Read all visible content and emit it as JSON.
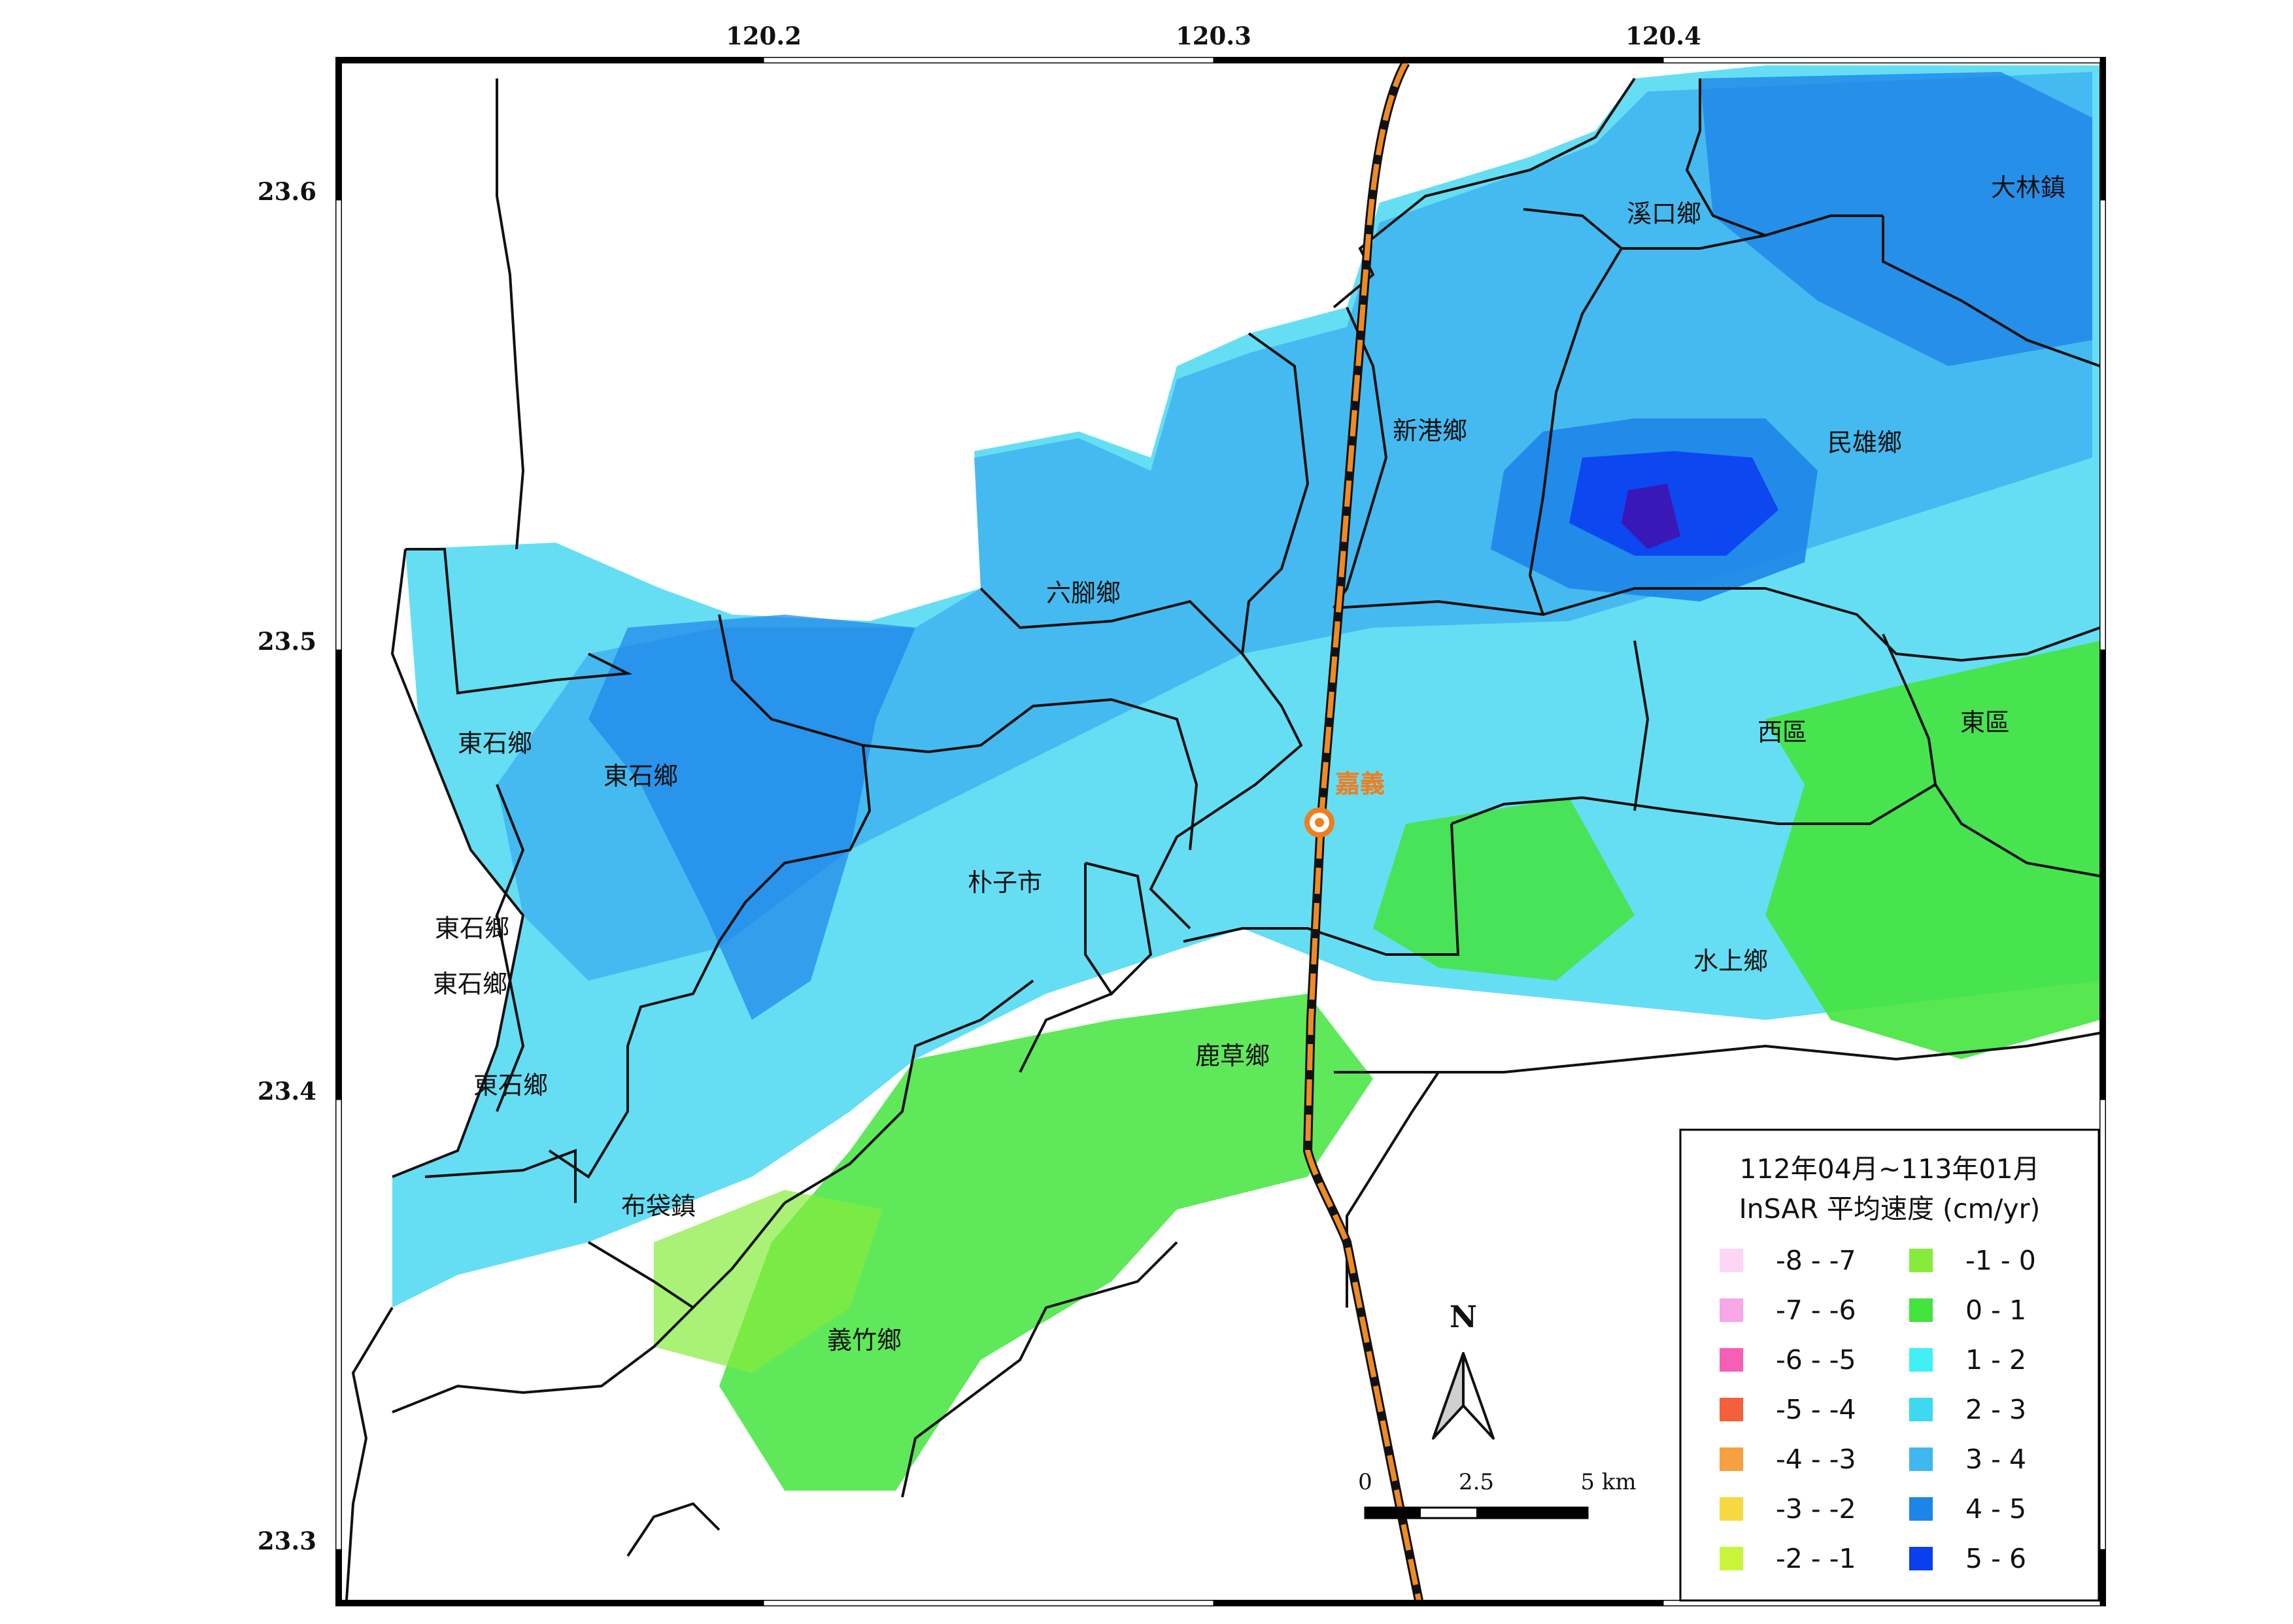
{
  "map": {
    "lon_ticks": [
      "120.2",
      "120.3",
      "120.4"
    ],
    "lat_ticks": [
      "23.6",
      "23.5",
      "23.4",
      "23.3"
    ]
  },
  "towns": [
    {
      "name": "溪口鄉"
    },
    {
      "name": "大林鎮"
    },
    {
      "name": "新港鄉"
    },
    {
      "name": "民雄鄉"
    },
    {
      "name": "六腳鄉"
    },
    {
      "name": "東石鄉"
    },
    {
      "name": "東石鄉"
    },
    {
      "name": "東石鄉"
    },
    {
      "name": "東石鄉"
    },
    {
      "name": "東石鄉"
    },
    {
      "name": "朴子市"
    },
    {
      "name": "西區"
    },
    {
      "name": "東區"
    },
    {
      "name": "水上鄉"
    },
    {
      "name": "鹿草鄉"
    },
    {
      "name": "布袋鎮"
    },
    {
      "name": "義竹鄉"
    }
  ],
  "city_marker": {
    "name": "嘉義"
  },
  "legend": {
    "title_line1": "112年04月~113年01月",
    "title_line2": "InSAR 平均速度 (cm/yr)",
    "classes": [
      {
        "label": "-8 - -7",
        "color": "#fdd5f5"
      },
      {
        "label": "-7 - -6",
        "color": "#f7a6e8"
      },
      {
        "label": "-6 - -5",
        "color": "#f55fb5"
      },
      {
        "label": "-5 - -4",
        "color": "#f4603c"
      },
      {
        "label": "-4 - -3",
        "color": "#f7a03f"
      },
      {
        "label": "-3 - -2",
        "color": "#f7d840"
      },
      {
        "label": "-2 - -1",
        "color": "#c8f53c"
      },
      {
        "label": "-1 - 0",
        "color": "#86ec3c"
      },
      {
        "label": "0 - 1",
        "color": "#44e43e"
      },
      {
        "label": "1 - 2",
        "color": "#40f0f4"
      },
      {
        "label": "2 - 3",
        "color": "#3ed8f0"
      },
      {
        "label": "3 - 4",
        "color": "#40b8ef"
      },
      {
        "label": "4 - 5",
        "color": "#1e85e8"
      },
      {
        "label": "5 - 6",
        "color": "#0a3ff0"
      }
    ]
  },
  "north_arrow": {
    "label": "N"
  },
  "scale_bar": {
    "labels": [
      "0",
      "2.5",
      "5 km"
    ]
  },
  "colors": {
    "railway": "#f08a24",
    "boundary": "#111111",
    "frame": "#000000",
    "city_marker": "#f07d1e",
    "deep_blue_core": "#3a18b8"
  }
}
